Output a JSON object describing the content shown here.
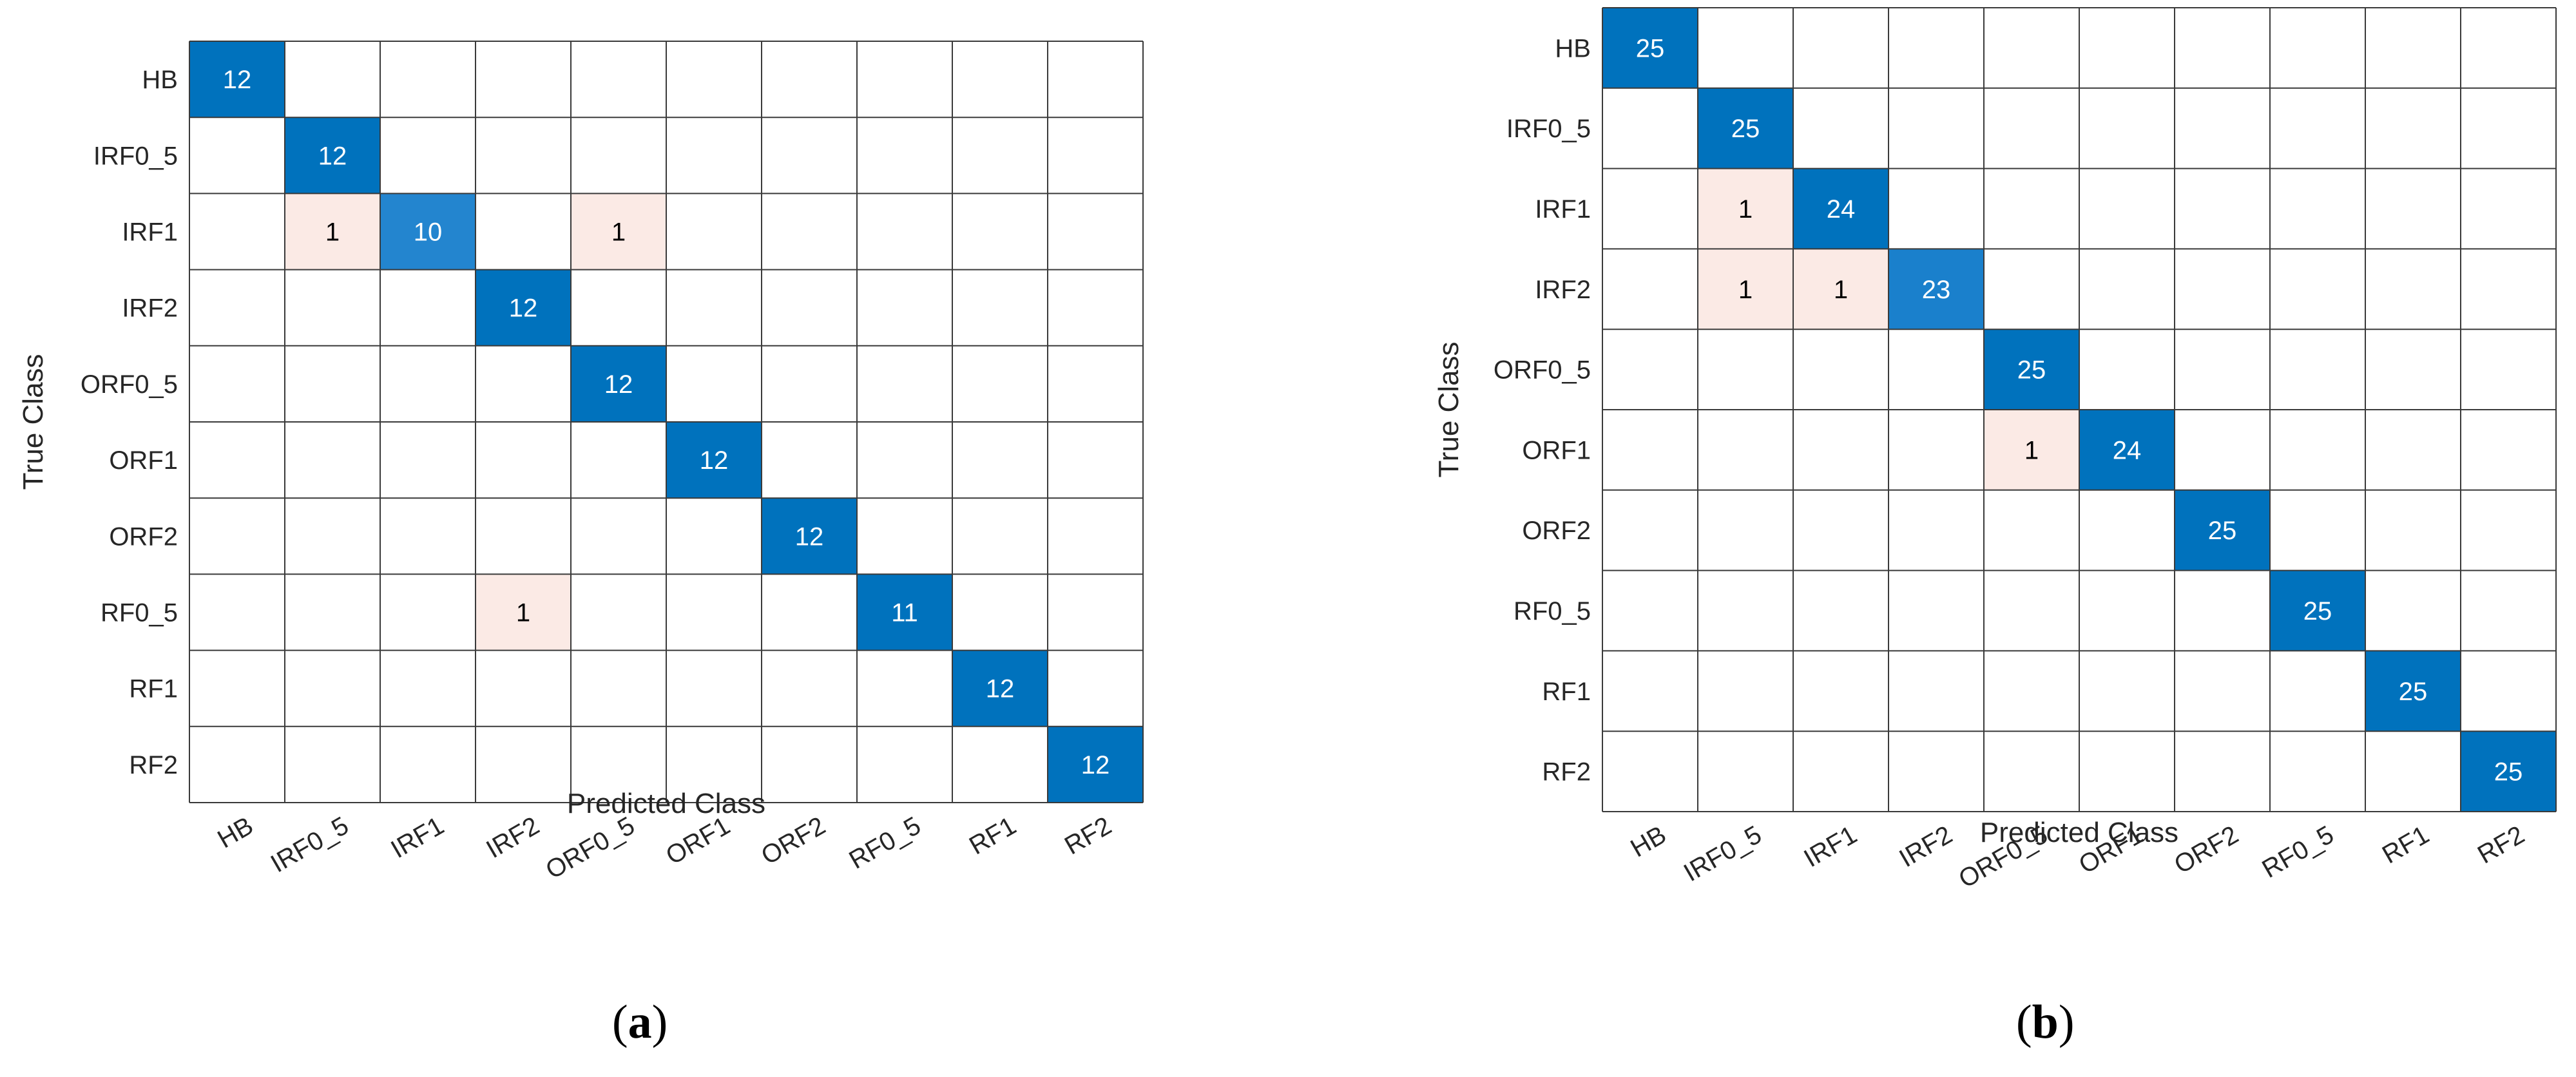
{
  "chart_data": [
    {
      "type": "heatmap",
      "subtype": "confusion_matrix",
      "panel": "(a)",
      "xlabel": "Predicted Class",
      "ylabel": "True Class",
      "classes": [
        "HB",
        "IRF0_5",
        "IRF1",
        "IRF2",
        "ORF0_5",
        "ORF1",
        "ORF2",
        "RF0_5",
        "RF1",
        "RF2"
      ],
      "matrix": [
        [
          12,
          0,
          0,
          0,
          0,
          0,
          0,
          0,
          0,
          0
        ],
        [
          0,
          12,
          0,
          0,
          0,
          0,
          0,
          0,
          0,
          0
        ],
        [
          0,
          1,
          10,
          0,
          1,
          0,
          0,
          0,
          0,
          0
        ],
        [
          0,
          0,
          0,
          12,
          0,
          0,
          0,
          0,
          0,
          0
        ],
        [
          0,
          0,
          0,
          0,
          12,
          0,
          0,
          0,
          0,
          0
        ],
        [
          0,
          0,
          0,
          0,
          0,
          12,
          0,
          0,
          0,
          0
        ],
        [
          0,
          0,
          0,
          0,
          0,
          0,
          12,
          0,
          0,
          0
        ],
        [
          0,
          0,
          0,
          1,
          0,
          0,
          0,
          11,
          0,
          0
        ],
        [
          0,
          0,
          0,
          0,
          0,
          0,
          0,
          0,
          12,
          0
        ],
        [
          0,
          0,
          0,
          0,
          0,
          0,
          0,
          0,
          0,
          12
        ]
      ],
      "colors": {
        "correct": "#0072BD",
        "correct_light": "#2385CF",
        "error": "#FBEAE5",
        "correct_text": "#ffffff",
        "error_text": "#000000"
      }
    },
    {
      "type": "heatmap",
      "subtype": "confusion_matrix",
      "panel": "(b)",
      "xlabel": "Predicted Class",
      "ylabel": "True Class",
      "classes": [
        "HB",
        "IRF0_5",
        "IRF1",
        "IRF2",
        "ORF0_5",
        "ORF1",
        "ORF2",
        "RF0_5",
        "RF1",
        "RF2"
      ],
      "matrix": [
        [
          25,
          0,
          0,
          0,
          0,
          0,
          0,
          0,
          0,
          0
        ],
        [
          0,
          25,
          0,
          0,
          0,
          0,
          0,
          0,
          0,
          0
        ],
        [
          0,
          1,
          24,
          0,
          0,
          0,
          0,
          0,
          0,
          0
        ],
        [
          0,
          1,
          1,
          23,
          0,
          0,
          0,
          0,
          0,
          0
        ],
        [
          0,
          0,
          0,
          0,
          25,
          0,
          0,
          0,
          0,
          0
        ],
        [
          0,
          0,
          0,
          0,
          1,
          24,
          0,
          0,
          0,
          0
        ],
        [
          0,
          0,
          0,
          0,
          0,
          0,
          25,
          0,
          0,
          0
        ],
        [
          0,
          0,
          0,
          0,
          0,
          0,
          0,
          25,
          0,
          0
        ],
        [
          0,
          0,
          0,
          0,
          0,
          0,
          0,
          0,
          25,
          0
        ],
        [
          0,
          0,
          0,
          0,
          0,
          0,
          0,
          0,
          0,
          25
        ]
      ],
      "colors": {
        "correct": "#0072BD",
        "correct_light": "#1A80CC",
        "error": "#FBEAE5",
        "correct_text": "#ffffff",
        "error_text": "#000000"
      }
    }
  ],
  "captions": {
    "a": {
      "open": "(",
      "letter": "a",
      "close": ")"
    },
    "b": {
      "open": "(",
      "letter": "b",
      "close": ")"
    }
  }
}
